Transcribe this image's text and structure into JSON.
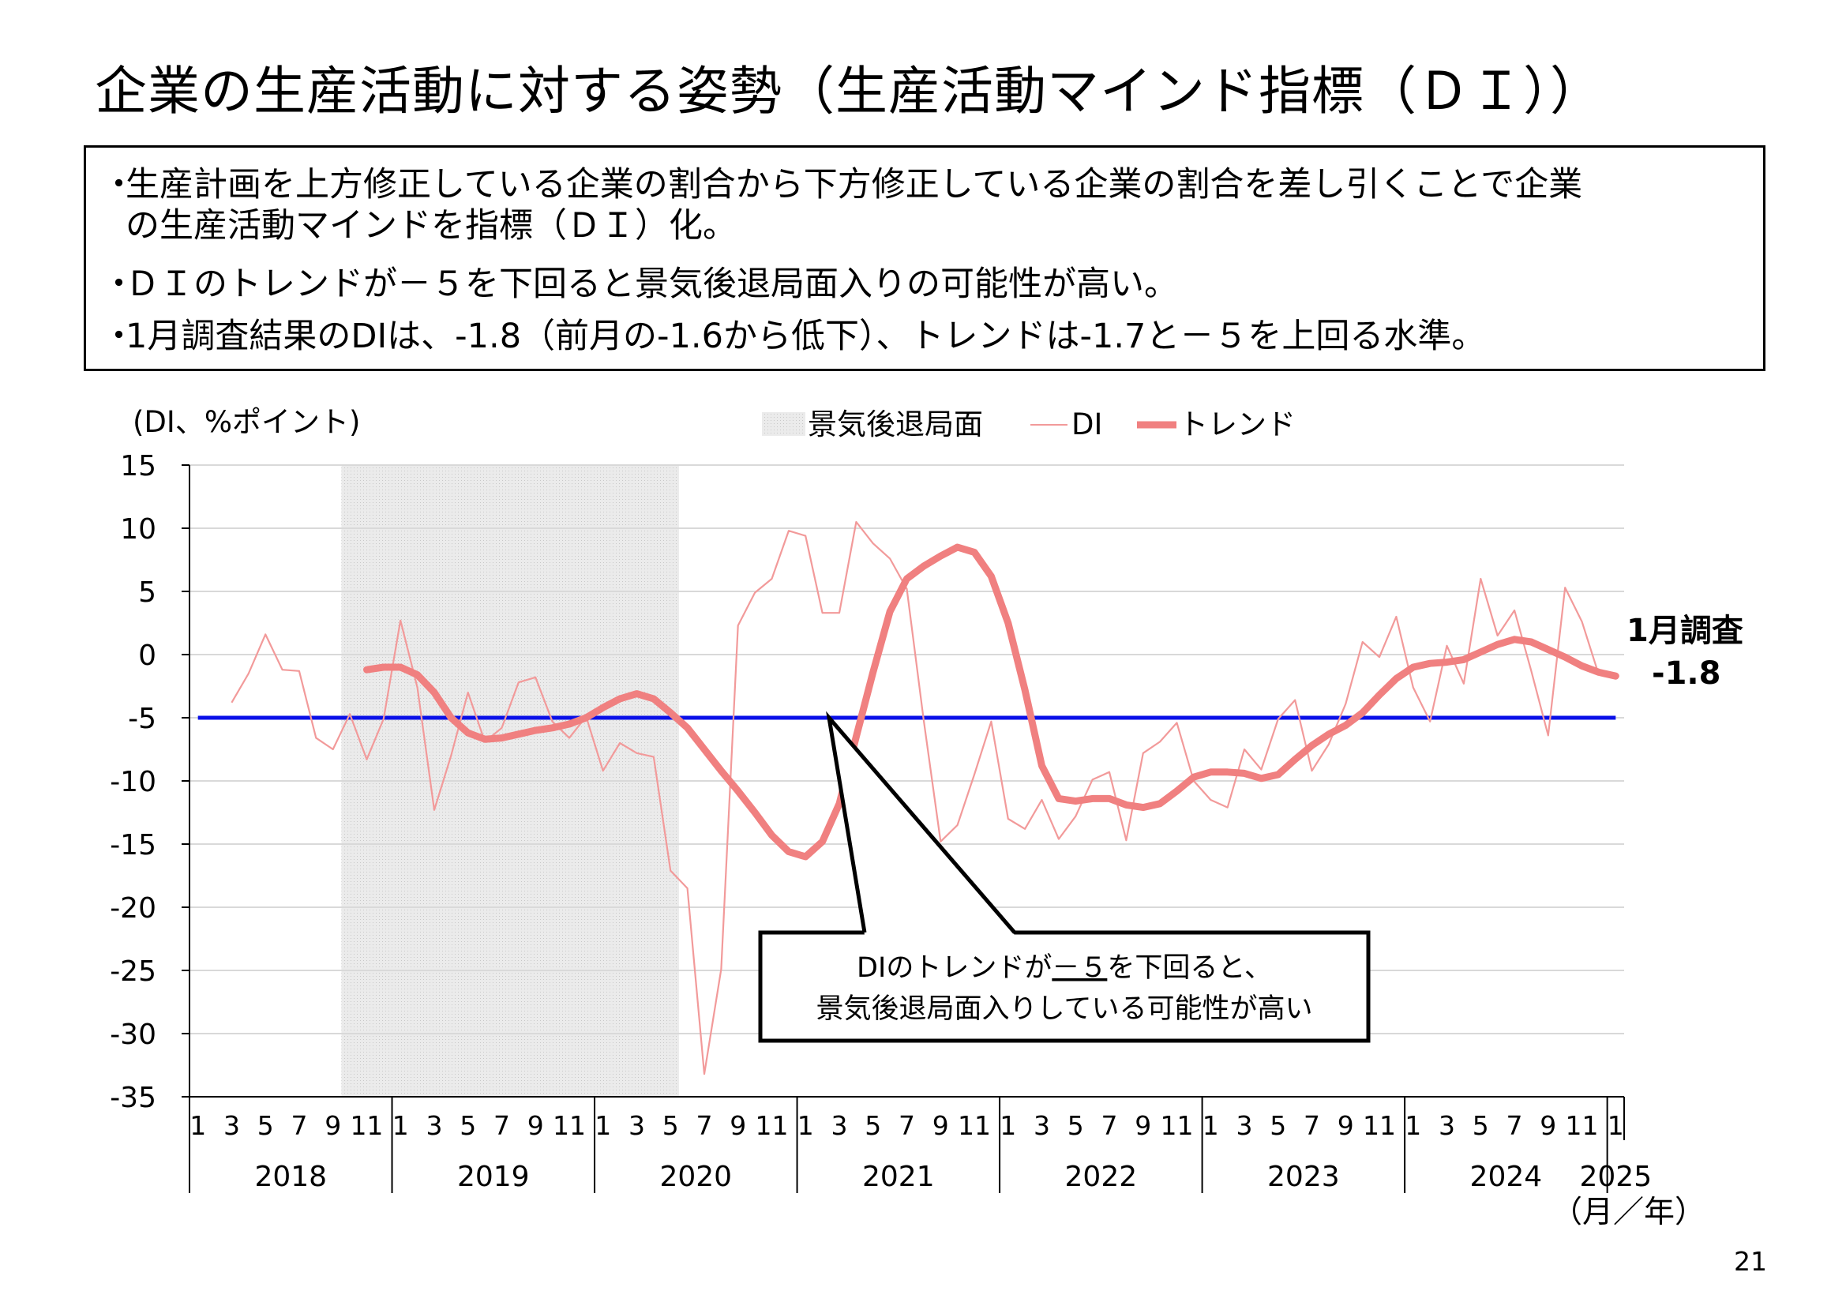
{
  "title": "企業の生産活動に対する姿勢（生産活動マインド指標（ＤＩ））",
  "description": {
    "bullets": [
      {
        "marker": "・",
        "lines": [
          "生産計画を上方修正している企業の割合から下方修正している企業の割合を差し引くことで企業",
          "の生産活動マインドを指標（ＤＩ）化。"
        ]
      },
      {
        "marker": "・",
        "lines": [
          "ＤＩのトレンドが－５を下回ると景気後退局面入りの可能性が高い。"
        ]
      },
      {
        "marker": "・",
        "lines": [
          "1月調査結果のDIは、-1.8（前月の-1.6から低下）、トレンドは-1.7と－５を上回る水準。"
        ]
      }
    ]
  },
  "page_number": "21",
  "colors": {
    "di": "#f29a9a",
    "trend": "#f08080",
    "threshold": "#0a10e8",
    "recession_band": "#e6e6e6",
    "grid": "#d9d9d9"
  },
  "chart_data": {
    "type": "line",
    "ylabel": "(DI、%ポイント)",
    "xlabel": "（月／年）",
    "ylim": [
      -35,
      15
    ],
    "yticks": [
      15,
      10,
      5,
      0,
      -5,
      -10,
      -15,
      -20,
      -25,
      -30,
      -35
    ],
    "x_month_labels": [
      "1",
      "3",
      "5",
      "7",
      "9",
      "11",
      "1",
      "3",
      "5",
      "7",
      "9",
      "11",
      "1",
      "3",
      "5",
      "7",
      "9",
      "11",
      "1",
      "3",
      "5",
      "7",
      "9",
      "11",
      "1",
      "3",
      "5",
      "7",
      "9",
      "11",
      "1",
      "3",
      "5",
      "7",
      "9",
      "11",
      "1",
      "3",
      "5",
      "7",
      "9",
      "11",
      "1"
    ],
    "x_month_label_index": [
      0,
      2,
      4,
      6,
      8,
      10,
      12,
      14,
      16,
      18,
      20,
      22,
      24,
      26,
      28,
      30,
      32,
      34,
      36,
      38,
      40,
      42,
      44,
      46,
      48,
      50,
      52,
      54,
      56,
      58,
      60,
      62,
      64,
      66,
      68,
      70,
      72,
      74,
      76,
      78,
      80,
      82,
      84
    ],
    "years": [
      "2018",
      "2019",
      "2020",
      "2021",
      "2022",
      "2023",
      "2024",
      "2025"
    ],
    "legend": {
      "recession": "景気後退局面",
      "di": "DI",
      "trend": "トレンド"
    },
    "recession_period": {
      "start": "2018-10",
      "end": "2020-05"
    },
    "threshold": -5,
    "series": [
      {
        "name": "DI",
        "values": [
          -3.8,
          -1.5,
          1.6,
          -1.2,
          -1.3,
          -6.6,
          -7.5,
          -4.7,
          -8.3,
          -5.1,
          2.7,
          -2.6,
          -12.3,
          -8.0,
          -3.0,
          -6.9,
          -5.8,
          -2.2,
          -1.8,
          -5.3,
          -6.6,
          -4.9,
          -9.2,
          -7.0,
          -7.8,
          -8.1,
          -17.1,
          -18.5,
          -33.2,
          -24.9,
          2.3,
          4.9,
          6.0,
          9.8,
          9.4,
          3.3,
          3.3,
          10.5,
          8.8,
          7.6,
          5.2,
          -5.2,
          -14.8,
          -13.5,
          -9.5,
          -5.3,
          -13.0,
          -13.8,
          -11.5,
          -14.6,
          -12.8,
          -9.9,
          -9.3,
          -14.7,
          -7.8,
          -6.9,
          -5.4,
          -10.0,
          -11.5,
          -12.1,
          -7.5,
          -9.1,
          -5.1,
          -3.6,
          -9.2,
          -7.1,
          -3.9,
          1.0,
          -0.2,
          3.0,
          -2.6,
          -5.3,
          0.7,
          -2.3,
          6.0,
          1.5,
          3.5,
          -1.3,
          -6.4,
          5.3,
          2.6,
          -1.6,
          -1.8
        ]
      },
      {
        "name": "トレンド",
        "values": [
          -1.2,
          -1.0,
          -1.0,
          -1.6,
          -3.0,
          -5.0,
          -6.2,
          -6.7,
          -6.6,
          -6.3,
          -6.0,
          -5.8,
          -5.5,
          -5.0,
          -4.2,
          -3.5,
          -3.1,
          -3.5,
          -4.6,
          -5.8,
          -7.5,
          -9.2,
          -10.8,
          -12.5,
          -14.3,
          -15.6,
          -16.0,
          -14.8,
          -11.8,
          -6.5,
          -1.4,
          3.4,
          6.0,
          7.0,
          7.8,
          8.5,
          8.1,
          6.2,
          2.5,
          -2.8,
          -8.8,
          -11.4,
          -11.6,
          -11.4,
          -11.4,
          -11.9,
          -12.1,
          -11.8,
          -10.8,
          -9.7,
          -9.3,
          -9.3,
          -9.4,
          -9.8,
          -9.5,
          -8.3,
          -7.2,
          -6.3,
          -5.6,
          -4.6,
          -3.2,
          -1.9,
          -1.0,
          -0.7,
          -0.6,
          -0.4,
          0.2,
          0.8,
          1.2,
          1.0,
          0.4,
          -0.2,
          -0.9,
          -1.4,
          -1.7
        ]
      }
    ],
    "annotation": {
      "prefix": "DIのトレンドが",
      "emphasis": "－５",
      "suffix": "を下回ると、",
      "line2": "景気後退局面入りしている可能性が高い"
    },
    "latest_label": {
      "line1": "1月調査",
      "line2": "-1.8"
    }
  }
}
